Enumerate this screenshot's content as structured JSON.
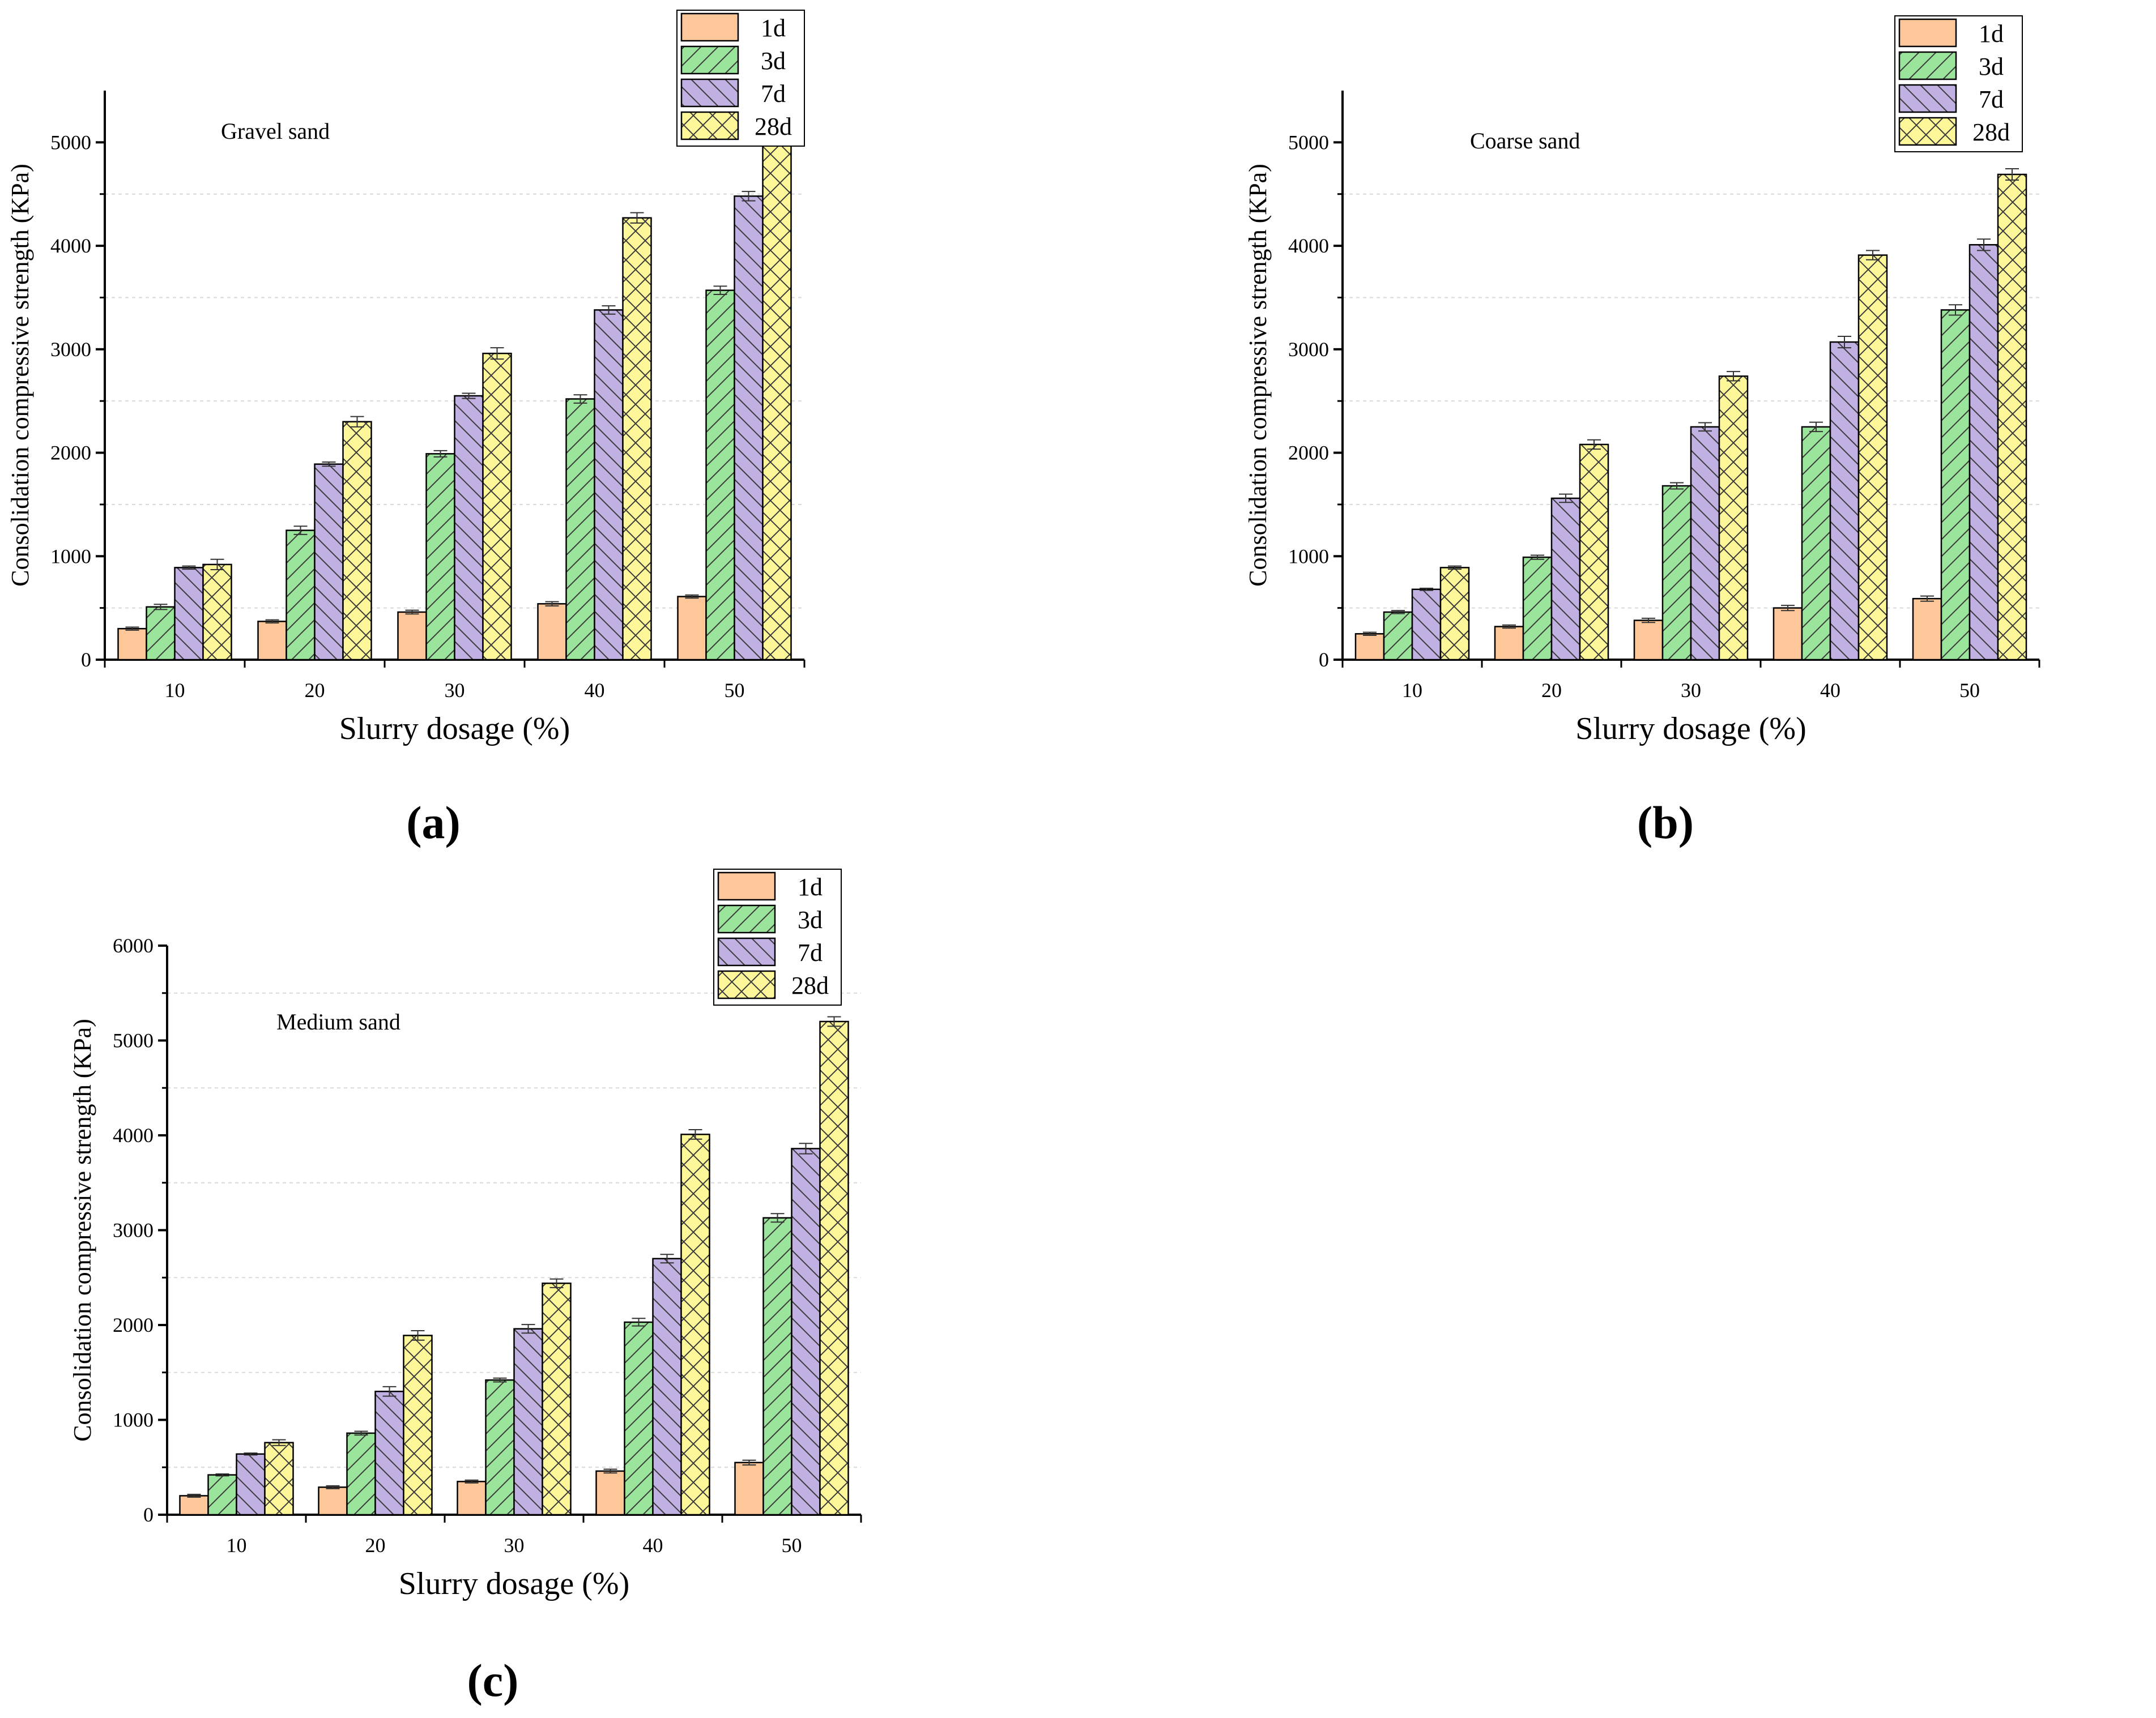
{
  "figure": {
    "panel_labels": [
      "(a)",
      "(b)",
      "(c)"
    ]
  },
  "colors": {
    "series": [
      "#fdc79a",
      "#9be49b",
      "#c1b1e3",
      "#fdf79a"
    ],
    "axis": "#000000",
    "grid": "#d9d9d9"
  },
  "chart_data": [
    {
      "type": "bar",
      "title": "Gravel sand",
      "xlabel": "Slurry dosage (%)",
      "ylabel": "Consolidation  compressive strength (KPa)",
      "categories": [
        "10",
        "20",
        "30",
        "40",
        "50"
      ],
      "ylim": [
        0,
        5500
      ],
      "yticks": [
        0,
        1000,
        2000,
        3000,
        4000,
        5000
      ],
      "grid": true,
      "legend_position": "top-right",
      "series": [
        {
          "name": "1d",
          "values": [
            300,
            370,
            460,
            540,
            610
          ],
          "errors": [
            15,
            15,
            18,
            20,
            15
          ]
        },
        {
          "name": "3d",
          "values": [
            510,
            1250,
            1990,
            2520,
            3570
          ],
          "errors": [
            25,
            40,
            30,
            40,
            40
          ]
        },
        {
          "name": "7d",
          "values": [
            890,
            1890,
            2550,
            3380,
            4480
          ],
          "errors": [
            15,
            20,
            25,
            40,
            45
          ]
        },
        {
          "name": "28d",
          "values": [
            920,
            2300,
            2960,
            4270,
            5030
          ],
          "errors": [
            50,
            50,
            55,
            50,
            50
          ]
        }
      ]
    },
    {
      "type": "bar",
      "title": "Coarse sand",
      "xlabel": "Slurry dosage (%)",
      "ylabel": "Consolidation  compressive strength (KPa)",
      "categories": [
        "10",
        "20",
        "30",
        "40",
        "50"
      ],
      "ylim": [
        0,
        5500
      ],
      "yticks": [
        0,
        1000,
        2000,
        3000,
        4000,
        5000
      ],
      "grid": true,
      "legend_position": "top-right",
      "series": [
        {
          "name": "1d",
          "values": [
            250,
            320,
            380,
            500,
            590
          ],
          "errors": [
            15,
            15,
            20,
            25,
            25
          ]
        },
        {
          "name": "3d",
          "values": [
            460,
            990,
            1680,
            2250,
            3380
          ],
          "errors": [
            15,
            20,
            30,
            45,
            50
          ]
        },
        {
          "name": "7d",
          "values": [
            680,
            1560,
            2250,
            3070,
            4010
          ],
          "errors": [
            10,
            40,
            40,
            55,
            55
          ]
        },
        {
          "name": "28d",
          "values": [
            890,
            2080,
            2740,
            3910,
            4690
          ],
          "errors": [
            15,
            45,
            45,
            45,
            55
          ]
        }
      ]
    },
    {
      "type": "bar",
      "title": "Medium sand",
      "xlabel": "Slurry dosage (%)",
      "ylabel": "Consolidation  compressive strength (KPa)",
      "categories": [
        "10",
        "20",
        "30",
        "40",
        "50"
      ],
      "ylim": [
        0,
        6000
      ],
      "yticks": [
        0,
        1000,
        2000,
        3000,
        4000,
        5000,
        6000
      ],
      "grid": true,
      "legend_position": "top-right",
      "series": [
        {
          "name": "1d",
          "values": [
            200,
            290,
            350,
            460,
            550
          ],
          "errors": [
            15,
            15,
            15,
            20,
            25
          ]
        },
        {
          "name": "3d",
          "values": [
            420,
            860,
            1420,
            2030,
            3130
          ],
          "errors": [
            10,
            20,
            20,
            40,
            45
          ]
        },
        {
          "name": "7d",
          "values": [
            640,
            1300,
            1960,
            2700,
            3860
          ],
          "errors": [
            10,
            50,
            45,
            45,
            55
          ]
        },
        {
          "name": "28d",
          "values": [
            760,
            1890,
            2440,
            4010,
            5200
          ],
          "errors": [
            30,
            50,
            45,
            50,
            50
          ]
        }
      ]
    }
  ]
}
